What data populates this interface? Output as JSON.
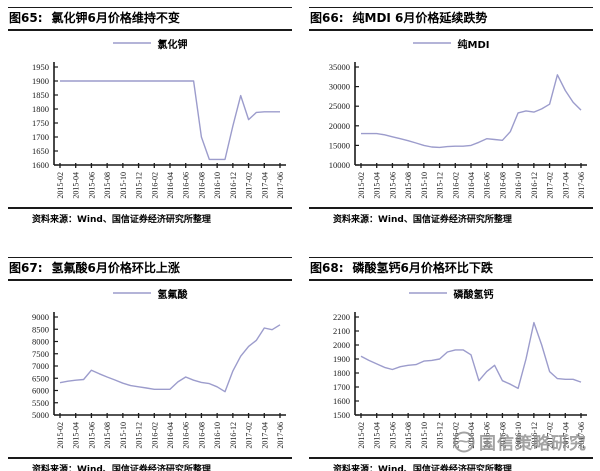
{
  "line_color": "#9c9ccc",
  "axis_color": "#1a1a1a",
  "watermark": {
    "icon": "globe-swirl-logo-icon",
    "text": "国信策略研究",
    "color": "#8a8a8a"
  },
  "panels": [
    {
      "title_prefix": "图65:",
      "title": "氯化钾6月价格维持不变",
      "legend": "氯化钾",
      "source": "资料来源：Wind、国信证券经济研究所整理"
    },
    {
      "title_prefix": "图66:",
      "title": "纯MDI 6月价格延续跌势",
      "legend": "纯MDI",
      "source": "资料来源：Wind、国信证券经济研究所整理"
    },
    {
      "title_prefix": "图67:",
      "title": "氢氟酸6月价格环比上涨",
      "legend": "氢氟酸",
      "source": "资料来源：Wind、国信证券经济研究所整理"
    },
    {
      "title_prefix": "图68:",
      "title": "磷酸氢钙6月价格环比下跌",
      "legend": "磷酸氢钙",
      "source": "资料来源：Wind、国信证券经济研究所整理"
    }
  ],
  "chart_data": [
    {
      "type": "line",
      "title": "氯化钾6月价格维持不变",
      "legend_position": "top",
      "grid": false,
      "ylim": [
        1600,
        1950
      ],
      "ytick_step": 50,
      "x": [
        "2015-02",
        "2015-03",
        "2015-04",
        "2015-05",
        "2015-06",
        "2015-07",
        "2015-08",
        "2015-09",
        "2015-10",
        "2015-11",
        "2015-12",
        "2016-01",
        "2016-02",
        "2016-03",
        "2016-04",
        "2016-05",
        "2016-06",
        "2016-07",
        "2016-08",
        "2016-09",
        "2016-10",
        "2016-11",
        "2016-12",
        "2017-01",
        "2017-02",
        "2017-03",
        "2017-04",
        "2017-05",
        "2017-06"
      ],
      "x_tick_labels": [
        "2015-02",
        "2015-04",
        "2015-06",
        "2015-08",
        "2015-10",
        "2015-12",
        "2016-02",
        "2016-04",
        "2016-06",
        "2016-08",
        "2016-10",
        "2016-12",
        "2017-02",
        "2017-04",
        "2017-06"
      ],
      "series": [
        {
          "name": "氯化钾",
          "values": [
            1900,
            1900,
            1900,
            1900,
            1900,
            1900,
            1900,
            1900,
            1900,
            1900,
            1900,
            1900,
            1900,
            1900,
            1900,
            1900,
            1900,
            1900,
            1700,
            1620,
            1620,
            1620,
            1740,
            1848,
            1762,
            1788,
            1790,
            1790,
            1790
          ]
        }
      ]
    },
    {
      "type": "line",
      "title": "纯MDI 6月价格延续跌势",
      "legend_position": "top",
      "grid": false,
      "ylim": [
        10000,
        35000
      ],
      "ytick_step": 5000,
      "x": [
        "2015-02",
        "2015-03",
        "2015-04",
        "2015-05",
        "2015-06",
        "2015-07",
        "2015-08",
        "2015-09",
        "2015-10",
        "2015-11",
        "2015-12",
        "2016-01",
        "2016-02",
        "2016-03",
        "2016-04",
        "2016-05",
        "2016-06",
        "2016-07",
        "2016-08",
        "2016-09",
        "2016-10",
        "2016-11",
        "2016-12",
        "2017-01",
        "2017-02",
        "2017-03",
        "2017-04",
        "2017-05",
        "2017-06"
      ],
      "x_tick_labels": [
        "2015-02",
        "2015-04",
        "2015-06",
        "2015-08",
        "2015-10",
        "2015-12",
        "2016-02",
        "2016-04",
        "2016-06",
        "2016-08",
        "2016-10",
        "2016-12",
        "2017-02",
        "2017-04",
        "2017-06"
      ],
      "series": [
        {
          "name": "纯MDI",
          "values": [
            18000,
            18000,
            18000,
            17700,
            17200,
            16700,
            16200,
            15600,
            15000,
            14600,
            14500,
            14700,
            14800,
            14800,
            15000,
            15800,
            16700,
            16500,
            16300,
            18500,
            23300,
            23800,
            23500,
            24300,
            25500,
            33000,
            29000,
            26000,
            24000
          ]
        }
      ]
    },
    {
      "type": "line",
      "title": "氢氟酸6月价格环比上涨",
      "legend_position": "top",
      "grid": false,
      "ylim": [
        5000,
        9000
      ],
      "ytick_step": 500,
      "x": [
        "2015-02",
        "2015-03",
        "2015-04",
        "2015-05",
        "2015-06",
        "2015-07",
        "2015-08",
        "2015-09",
        "2015-10",
        "2015-11",
        "2015-12",
        "2016-01",
        "2016-02",
        "2016-03",
        "2016-04",
        "2016-05",
        "2016-06",
        "2016-07",
        "2016-08",
        "2016-09",
        "2016-10",
        "2016-11",
        "2016-12",
        "2017-01",
        "2017-02",
        "2017-03",
        "2017-04",
        "2017-05",
        "2017-06"
      ],
      "x_tick_labels": [
        "2015-02",
        "2015-04",
        "2015-06",
        "2015-08",
        "2015-10",
        "2015-12",
        "2016-02",
        "2016-04",
        "2016-06",
        "2016-08",
        "2016-10",
        "2016-12",
        "2017-02",
        "2017-04",
        "2017-06"
      ],
      "series": [
        {
          "name": "氢氟酸",
          "values": [
            6320,
            6380,
            6420,
            6450,
            6830,
            6680,
            6550,
            6430,
            6300,
            6200,
            6150,
            6100,
            6050,
            6050,
            6050,
            6350,
            6550,
            6420,
            6330,
            6280,
            6150,
            5950,
            6800,
            7400,
            7800,
            8050,
            8550,
            8480,
            8680
          ]
        }
      ]
    },
    {
      "type": "line",
      "title": "磷酸氢钙6月价格环比下跌",
      "legend_position": "top",
      "grid": false,
      "ylim": [
        1500,
        2200
      ],
      "ytick_step": 100,
      "x": [
        "2015-02",
        "2015-03",
        "2015-04",
        "2015-05",
        "2015-06",
        "2015-07",
        "2015-08",
        "2015-09",
        "2015-10",
        "2015-11",
        "2015-12",
        "2016-01",
        "2016-02",
        "2016-03",
        "2016-04",
        "2016-05",
        "2016-06",
        "2016-07",
        "2016-08",
        "2016-09",
        "2016-10",
        "2016-11",
        "2016-12",
        "2017-01",
        "2017-02",
        "2017-03",
        "2017-04",
        "2017-05",
        "2017-06"
      ],
      "x_tick_labels": [
        "2015-02",
        "2015-04",
        "2015-06",
        "2015-08",
        "2015-10",
        "2015-12",
        "2016-02",
        "2016-04",
        "2016-06",
        "2016-08",
        "2016-10",
        "2016-12",
        "2017-02",
        "2017-04",
        "2017-06"
      ],
      "series": [
        {
          "name": "磷酸氢钙",
          "values": [
            1920,
            1890,
            1865,
            1840,
            1825,
            1845,
            1855,
            1860,
            1885,
            1890,
            1900,
            1950,
            1965,
            1965,
            1930,
            1745,
            1810,
            1855,
            1745,
            1720,
            1690,
            1900,
            2160,
            2000,
            1810,
            1760,
            1755,
            1755,
            1735
          ]
        }
      ]
    }
  ]
}
